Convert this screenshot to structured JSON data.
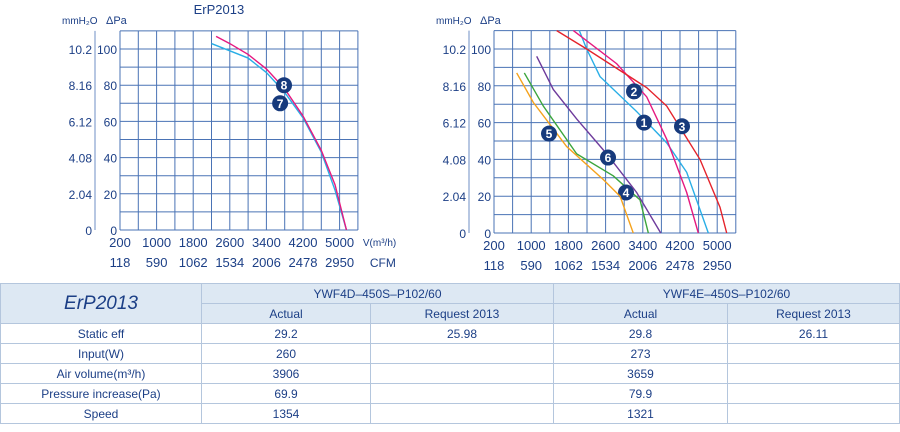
{
  "chart_data": [
    {
      "type": "line",
      "title": "ErP2013",
      "xlabel": "V(m³/h)",
      "x2label": "CFM",
      "ylabel_left": "mmH₂O",
      "ylabel": "ΔPa",
      "xlim": [
        200,
        5400
      ],
      "ylim": [
        0,
        110
      ],
      "xticks": [
        200,
        1000,
        1800,
        2600,
        3400,
        4200,
        5000
      ],
      "xticks2": [
        "118",
        "590",
        "1062",
        "1534",
        "2006",
        "2478",
        "2950"
      ],
      "yticks": [
        0,
        20,
        40,
        60,
        80,
        100
      ],
      "yticks_mm": [
        "0",
        "2.04",
        "4.08",
        "6.12",
        "8.16",
        "10.2"
      ],
      "series": [
        {
          "name": "7",
          "color": "#29aee6",
          "marker": [
            3700,
            70
          ],
          "x": [
            2200,
            2600,
            3000,
            3400,
            3800,
            4200,
            4600,
            4900,
            5150
          ],
          "y": [
            103,
            99,
            95,
            87,
            76,
            62,
            43,
            22,
            0
          ]
        },
        {
          "name": "8",
          "color": "#e6197f",
          "marker": [
            3785,
            80
          ],
          "x": [
            2300,
            2600,
            3000,
            3400,
            3800,
            4200,
            4600,
            4900,
            5150
          ],
          "y": [
            107,
            103,
            97,
            89,
            78,
            63,
            44,
            25,
            0
          ]
        }
      ]
    },
    {
      "type": "line",
      "title": "",
      "xlabel": "",
      "x2label": "",
      "ylabel_left": "mmH₂O",
      "ylabel": "ΔPa",
      "xlim": [
        200,
        5400
      ],
      "ylim": [
        0,
        110
      ],
      "xticks": [
        200,
        1000,
        1800,
        2600,
        3400,
        4200,
        5000
      ],
      "xticks2": [
        "118",
        "590",
        "1062",
        "1534",
        "2006",
        "2478",
        "2950"
      ],
      "yticks": [
        0,
        20,
        40,
        60,
        80,
        100
      ],
      "yticks_mm": [
        "0",
        "2.04",
        "4.08",
        "6.12",
        "8.16",
        "10.2"
      ],
      "series": [
        {
          "name": "1",
          "color": "#29aee6",
          "marker": [
            3426,
            60
          ],
          "x": [
            2035,
            2193,
            2480,
            3268,
            3914,
            4344,
            4809
          ],
          "y": [
            110,
            100,
            85,
            66,
            49,
            33,
            0
          ]
        },
        {
          "name": "2",
          "color": "#e6197f",
          "marker": [
            3211,
            77
          ],
          "x": [
            1906,
            2839,
            3484,
            3914,
            4344,
            4594
          ],
          "y": [
            110,
            92,
            74,
            51,
            22,
            0
          ]
        },
        {
          "name": "3",
          "color": "#e5232b",
          "marker": [
            4243,
            58
          ],
          "x": [
            1548,
            2193,
            3484,
            3914,
            4630,
            5060,
            5204
          ],
          "y": [
            110,
            100,
            79,
            69,
            40,
            14,
            0
          ]
        },
        {
          "name": "4",
          "color": "#3ba53c",
          "marker": [
            3039,
            22
          ],
          "x": [
            852,
            1260,
            1978,
            2767,
            3340,
            3519
          ],
          "y": [
            87,
            69,
            43,
            31,
            18,
            0
          ]
        },
        {
          "name": "5",
          "color": "#f5a21b",
          "marker": [
            1383,
            54
          ],
          "x": [
            688,
            1045,
            1762,
            2552,
            2911,
            3195
          ],
          "y": [
            87,
            71,
            47,
            29,
            20,
            0
          ]
        },
        {
          "name": "6",
          "color": "#6e3b9c",
          "marker": [
            2652,
            41
          ],
          "x": [
            1118,
            1475,
            1978,
            2624,
            3268,
            3786
          ],
          "y": [
            96,
            78,
            62,
            43,
            22,
            0
          ]
        }
      ]
    }
  ],
  "table": {
    "title": "ErP2013",
    "models": [
      "YWF4D–450S–P102/60",
      "YWF4E–450S–P102/60"
    ],
    "sub": [
      "Actual",
      "Request 2013",
      "Actual",
      "Request 2013"
    ],
    "rows": [
      [
        "Static eff",
        "29.2",
        "25.98",
        "29.8",
        "26.11"
      ],
      [
        "Input(W)",
        "260",
        "",
        "273",
        ""
      ],
      [
        "Air volume(m³/h)",
        "3906",
        "",
        "3659",
        ""
      ],
      [
        "Pressure increase(Pa)",
        "69.9",
        "",
        "79.9",
        ""
      ],
      [
        "Speed",
        "1354",
        "",
        "1321",
        ""
      ]
    ]
  }
}
